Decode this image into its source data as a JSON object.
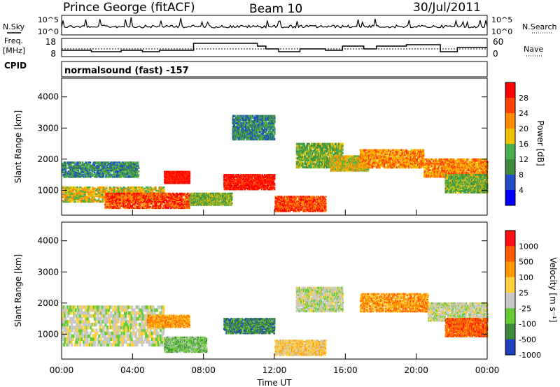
{
  "header": {
    "station": "Prince George (fitACF)",
    "beam": "Beam 10",
    "date": "30/Jul/2011"
  },
  "noise_panel": {
    "left_label": "N.Sky",
    "right_label": "N.Search",
    "top_tick": "10^5",
    "bottom_tick": "10^0"
  },
  "freq_panel": {
    "left_label_1": "Freq.",
    "left_label_2": "[MHz]",
    "right_label": "Nave",
    "left_ticks": [
      "18",
      "8"
    ],
    "right_ticks": [
      "60",
      "0"
    ],
    "freq_steps": [
      [
        0.0,
        11
      ],
      [
        0.03,
        11
      ],
      [
        0.07,
        10
      ],
      [
        0.14,
        11
      ],
      [
        0.19,
        10
      ],
      [
        0.23,
        11
      ],
      [
        0.31,
        16
      ],
      [
        0.43,
        16
      ],
      [
        0.46,
        14
      ],
      [
        0.48,
        12
      ],
      [
        0.51,
        10
      ],
      [
        0.53,
        10
      ],
      [
        0.56,
        12
      ],
      [
        0.62,
        11
      ],
      [
        0.66,
        14
      ],
      [
        0.71,
        12
      ],
      [
        0.74,
        14
      ],
      [
        0.77,
        14
      ],
      [
        0.81,
        15
      ],
      [
        0.89,
        10
      ],
      [
        0.93,
        13
      ],
      [
        0.98,
        13
      ],
      [
        1.0,
        13
      ]
    ]
  },
  "cpid": {
    "label": "CPID",
    "mode": "normalsound (fast) -157"
  },
  "chart_data": [
    {
      "type": "heatmap",
      "ylabel": "Slant Range [km]",
      "yticks": [
        "1000",
        "2000",
        "3000",
        "4000"
      ],
      "ylim": [
        200,
        4600
      ],
      "xlim": [
        "00:00",
        "24:00"
      ],
      "colorbar_label": "Power [dB]",
      "colorbar_ticks": [
        "4",
        "8",
        "12",
        "16",
        "20",
        "24",
        "28"
      ],
      "colorbar_range": [
        0,
        32
      ],
      "colors": [
        "#0000ff",
        "#1f4fc8",
        "#3c8c3c",
        "#4bb04b",
        "#f0c000",
        "#ff8c00",
        "#ff4000",
        "#ff0000"
      ],
      "blobs": [
        {
          "t": [
            0.0,
            0.18
          ],
          "r": [
            1400,
            1900
          ],
          "v": 9
        },
        {
          "t": [
            0.0,
            0.24
          ],
          "r": [
            600,
            1100
          ],
          "v": 14
        },
        {
          "t": [
            0.1,
            0.3
          ],
          "r": [
            400,
            900
          ],
          "v": 24
        },
        {
          "t": [
            0.24,
            0.3
          ],
          "r": [
            1200,
            1600
          ],
          "v": 28
        },
        {
          "t": [
            0.3,
            0.4
          ],
          "r": [
            500,
            900
          ],
          "v": 12
        },
        {
          "t": [
            0.38,
            0.5
          ],
          "r": [
            1000,
            1500
          ],
          "v": 27
        },
        {
          "t": [
            0.4,
            0.5
          ],
          "r": [
            2600,
            3400
          ],
          "v": 8
        },
        {
          "t": [
            0.5,
            0.62
          ],
          "r": [
            300,
            800
          ],
          "v": 22
        },
        {
          "t": [
            0.55,
            0.66
          ],
          "r": [
            1700,
            2500
          ],
          "v": 10
        },
        {
          "t": [
            0.63,
            0.72
          ],
          "r": [
            1600,
            2100
          ],
          "v": 14
        },
        {
          "t": [
            0.7,
            0.85
          ],
          "r": [
            1700,
            2300
          ],
          "v": 18
        },
        {
          "t": [
            0.85,
            1.0
          ],
          "r": [
            1400,
            2000
          ],
          "v": 20
        },
        {
          "t": [
            0.9,
            1.0
          ],
          "r": [
            900,
            1500
          ],
          "v": 12
        }
      ]
    },
    {
      "type": "heatmap",
      "ylabel": "Slant Range [km]",
      "yticks": [
        "1000",
        "2000",
        "3000",
        "4000"
      ],
      "ylim": [
        200,
        4600
      ],
      "xlabel": "Time UT",
      "xticks": [
        "00:00",
        "04:00",
        "08:00",
        "12:00",
        "16:00",
        "20:00",
        "00:00"
      ],
      "colorbar_label": "Velocity [m s⁻¹]",
      "colorbar_ticks": [
        "1000",
        "500",
        "100",
        "25",
        "-25",
        "-100",
        "-500",
        "-1000"
      ],
      "colors": [
        "#2040c0",
        "#3a8a3a",
        "#66cc33",
        "#c8c8c8",
        "#ffd040",
        "#ff9900",
        "#ff5a00",
        "#ff1010"
      ],
      "blobs": [
        {
          "t": [
            0.0,
            0.24
          ],
          "r": [
            600,
            1900
          ],
          "v": 3
        },
        {
          "t": [
            0.2,
            0.3
          ],
          "r": [
            1200,
            1600
          ],
          "v": 5
        },
        {
          "t": [
            0.24,
            0.34
          ],
          "r": [
            400,
            900
          ],
          "v": 2
        },
        {
          "t": [
            0.38,
            0.5
          ],
          "r": [
            1000,
            1500
          ],
          "v": 1
        },
        {
          "t": [
            0.5,
            0.62
          ],
          "r": [
            300,
            800
          ],
          "v": 4
        },
        {
          "t": [
            0.55,
            0.66
          ],
          "r": [
            1700,
            2500
          ],
          "v": 3
        },
        {
          "t": [
            0.7,
            0.86
          ],
          "r": [
            1700,
            2300
          ],
          "v": 5
        },
        {
          "t": [
            0.86,
            1.0
          ],
          "r": [
            1400,
            2000
          ],
          "v": 3
        },
        {
          "t": [
            0.9,
            1.0
          ],
          "r": [
            900,
            1500
          ],
          "v": 6
        }
      ]
    }
  ]
}
